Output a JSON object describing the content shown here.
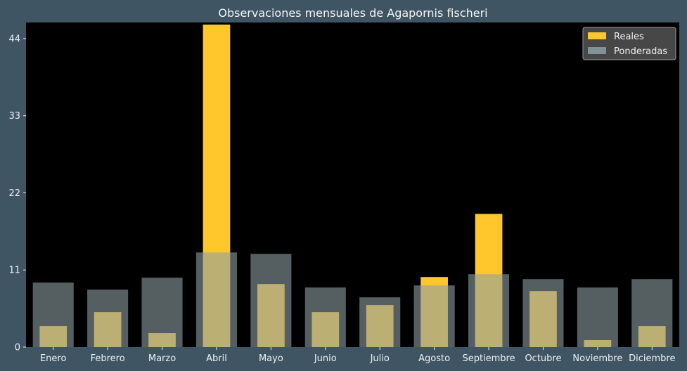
{
  "chart_data": {
    "type": "bar",
    "title": "Observaciones mensuales de Agapornis fischeri",
    "xlabel": "",
    "ylabel": "",
    "categories": [
      "Enero",
      "Febrero",
      "Marzo",
      "Abril",
      "Mayo",
      "Junio",
      "Julio",
      "Agosto",
      "Septiembre",
      "Octubre",
      "Noviembre",
      "Diciembre"
    ],
    "series": [
      {
        "name": "Reales",
        "color": "#ffc72c",
        "values": [
          3,
          5,
          2,
          46,
          9,
          5,
          6,
          10,
          19,
          8,
          1,
          3
        ]
      },
      {
        "name": "Ponderadas",
        "color": "#8d9fa3",
        "values": [
          9.2,
          8.2,
          9.9,
          13.5,
          13.3,
          8.5,
          7.1,
          8.8,
          10.4,
          9.7,
          8.5,
          9.7
        ]
      }
    ],
    "ylim": [
      0,
      46.3
    ],
    "yticks": [
      0,
      11,
      22,
      33,
      44
    ],
    "legend_position": "top-right",
    "grid": false,
    "colors": {
      "figure_background": "#3f5563",
      "plot_background": "#000000",
      "text": "#f0f0f0",
      "legend_background": "#4f4f4f"
    }
  }
}
